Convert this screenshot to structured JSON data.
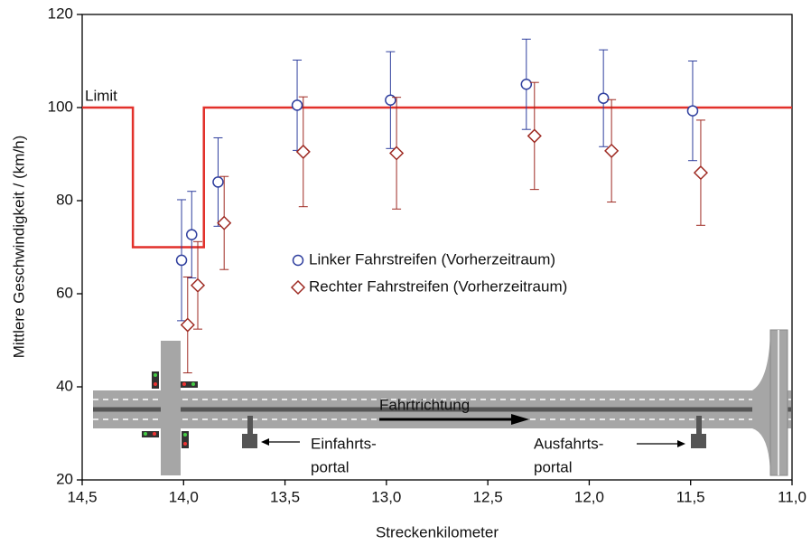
{
  "chart_data": {
    "type": "scatter",
    "xlabel": "Streckenkilometer",
    "ylabel": "Mittlere Geschwindigkeit / (km/h)",
    "xlim": [
      14.5,
      11.0
    ],
    "ylim": [
      20,
      120
    ],
    "xticks": [
      {
        "value": 14.5,
        "label": "14,5"
      },
      {
        "value": 14.0,
        "label": "14,0"
      },
      {
        "value": 13.5,
        "label": "13,5"
      },
      {
        "value": 13.0,
        "label": "13,0"
      },
      {
        "value": 12.5,
        "label": "12,5"
      },
      {
        "value": 12.0,
        "label": "12,0"
      },
      {
        "value": 11.5,
        "label": "11,5"
      },
      {
        "value": 11.0,
        "label": "11,0"
      }
    ],
    "yticks": [
      20,
      40,
      60,
      80,
      100,
      120
    ],
    "legend": "center",
    "series": [
      {
        "name": "Linker Fahrstreifen (Vorherzeitraum)",
        "color": "#2f3f9e",
        "marker": "circle",
        "x": [
          14.01,
          13.96,
          13.83,
          13.44,
          12.98,
          12.31,
          11.93,
          11.49
        ],
        "values": [
          67.2,
          72.7,
          84.0,
          100.5,
          101.6,
          105.0,
          102.0,
          99.3
        ],
        "errors": [
          13.0,
          9.3,
          9.5,
          9.7,
          10.4,
          9.7,
          10.4,
          10.7
        ]
      },
      {
        "name": "Rechter Fahrstreifen (Vorherzeitraum)",
        "color": "#9e2a22",
        "marker": "diamond",
        "x": [
          13.98,
          13.93,
          13.8,
          13.41,
          12.95,
          12.27,
          11.89,
          11.45
        ],
        "values": [
          53.3,
          61.8,
          75.2,
          90.5,
          90.2,
          93.9,
          90.7,
          86.0
        ],
        "errors": [
          10.3,
          9.4,
          10.0,
          11.8,
          12.0,
          11.5,
          11.0,
          11.3
        ]
      }
    ],
    "limit": {
      "name": "Limit",
      "color": "#e2312b",
      "x": [
        14.5,
        14.25,
        14.25,
        13.9,
        13.9,
        11.0
      ],
      "values": [
        100,
        100,
        70,
        70,
        100,
        100
      ]
    },
    "annotations": {
      "direction": "Fahrtrichtung",
      "entry_portal": [
        "Einfahrts-",
        "portal"
      ],
      "exit_portal": [
        "Ausfahrts-",
        "portal"
      ]
    }
  }
}
